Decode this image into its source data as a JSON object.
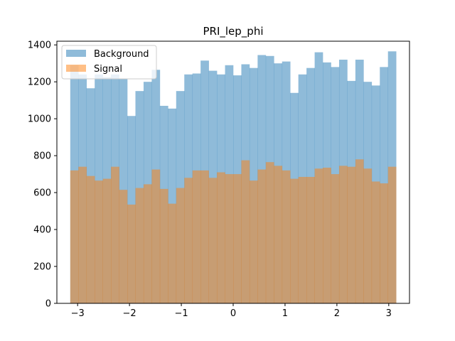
{
  "chart_data": {
    "type": "bar",
    "title": "PRI_lep_phi",
    "xlim": [
      -3.4,
      3.4
    ],
    "ylim": [
      0,
      1420
    ],
    "x_ticks": [
      -3,
      -2,
      -1,
      0,
      1,
      2,
      3
    ],
    "x_tick_labels": [
      "−3",
      "−2",
      "−1",
      "0",
      "1",
      "2",
      "3"
    ],
    "y_ticks": [
      0,
      200,
      400,
      600,
      800,
      1000,
      1200,
      1400
    ],
    "y_tick_labels": [
      "0",
      "200",
      "400",
      "600",
      "800",
      "1000",
      "1200",
      "1400"
    ],
    "legend": {
      "placement": "top-left"
    },
    "bin_edges": [
      -3.142,
      -2.9849,
      -2.8278,
      -2.6707,
      -2.5136,
      -2.3565,
      -2.1994,
      -2.0423,
      -1.8852,
      -1.7281,
      -1.571,
      -1.4139,
      -1.2568,
      -1.0997,
      -0.9426,
      -0.7855,
      -0.6284,
      -0.4713,
      -0.3142,
      -0.1571,
      0.0,
      0.1571,
      0.3142,
      0.4713,
      0.6284,
      0.7855,
      0.9426,
      1.0997,
      1.2568,
      1.4139,
      1.571,
      1.7281,
      1.8852,
      2.0423,
      2.1994,
      2.3565,
      2.5136,
      2.6707,
      2.8278,
      2.9849,
      3.142
    ],
    "series": [
      {
        "name": "Background",
        "color": "#1f77b4",
        "alpha": 0.5,
        "values": [
          1290,
          1240,
          1165,
          1240,
          1225,
          1240,
          1215,
          1015,
          1150,
          1200,
          1265,
          1070,
          1055,
          1150,
          1240,
          1245,
          1315,
          1260,
          1240,
          1290,
          1235,
          1295,
          1275,
          1345,
          1340,
          1300,
          1310,
          1140,
          1240,
          1275,
          1360,
          1305,
          1280,
          1320,
          1205,
          1320,
          1200,
          1180,
          1280,
          1365
        ]
      },
      {
        "name": "Signal",
        "color": "#ff7f0e",
        "alpha": 0.5,
        "values": [
          720,
          740,
          690,
          665,
          675,
          740,
          615,
          535,
          625,
          645,
          725,
          620,
          540,
          625,
          680,
          720,
          720,
          680,
          710,
          700,
          700,
          775,
          665,
          725,
          765,
          745,
          720,
          675,
          685,
          685,
          730,
          735,
          700,
          745,
          740,
          780,
          730,
          660,
          650,
          740
        ]
      }
    ]
  }
}
